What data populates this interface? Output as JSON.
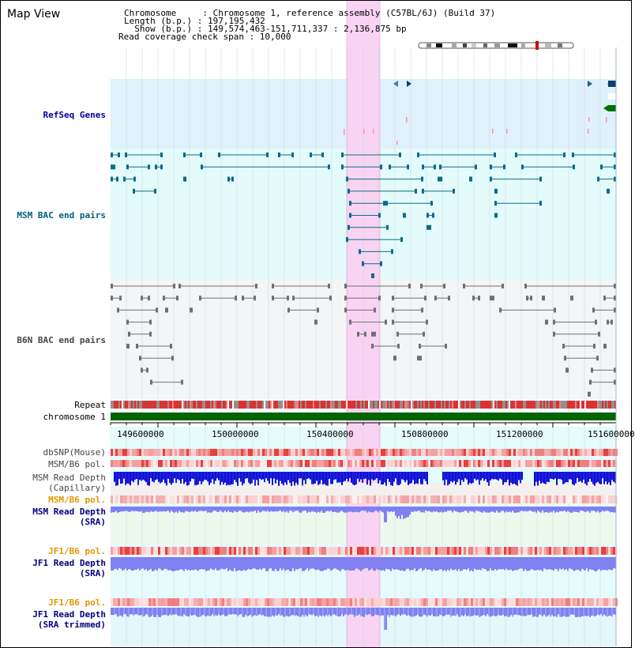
{
  "window": {
    "title": "Map View"
  },
  "info": {
    "chromosome_label": "Chromosome     : Chromosome 1, reference assembly (C57BL/6J) (Build 37)",
    "length_label": "Length (b.p.) : 197,195,432",
    "show_label": "  Show (b.p.) : 149,574,463-151,711,337 : 2,136,875 bp",
    "coverage_label": "Read coverage check span : 10,000"
  },
  "tracks": {
    "refseq_genes": "RefSeq Genes",
    "msm_bac": "MSM BAC end pairs",
    "b6n_bac": "B6N BAC end pairs",
    "repeat": "Repeat",
    "chromosome": "chromosome 1",
    "dbsnp": "dbSNP(Mouse)",
    "msm_b6_pol_1": "MSM/B6 pol.",
    "msm_read_depth_cap_1": "MSM Read Depth",
    "msm_read_depth_cap_2": "(Capillary)",
    "msm_b6_pol_2": "MSM/B6 pol.",
    "msm_read_depth_sra_1": "MSM Read Depth",
    "msm_read_depth_sra_2": "(SRA)",
    "jf1_b6_pol_1": "JF1/B6 pol.",
    "jf1_read_depth_sra_1": "JF1 Read Depth",
    "jf1_read_depth_sra_2": "(SRA)",
    "jf1_b6_pol_2": "JF1/B6 pol.",
    "jf1_read_depth_trim_1": "JF1 Read Depth",
    "jf1_read_depth_trim_2": "(SRA trimmed)"
  },
  "axis": {
    "ticks": [
      "149600000",
      "150000000",
      "150400000",
      "150800000",
      "151200000",
      "151600000"
    ]
  },
  "colors": {
    "refseq_bg": "#dff1fb",
    "msm_bac_bg": "#e4fbfb",
    "b6n_bac_bg": "#f3f5f6",
    "highlight": "#f8d4f2",
    "msm_label": "#00607a",
    "refseq_label": "#0000a0",
    "pol_label": "#e59400",
    "depth_label": "#000080",
    "chromosome": "#006400",
    "capillary_depth": "#2020e0",
    "sra_depth": "#8080f0"
  }
}
